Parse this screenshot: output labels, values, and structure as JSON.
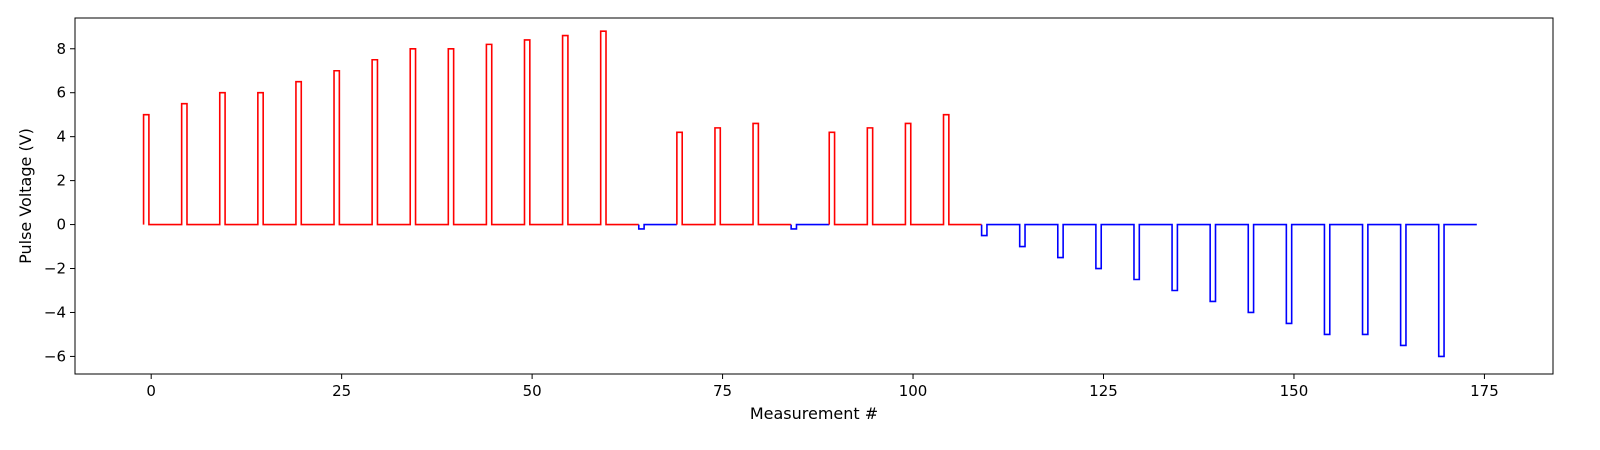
{
  "chart_data": {
    "type": "line",
    "title": "",
    "xlabel": "Measurement #",
    "ylabel": "Pulse Voltage (V)",
    "xlim": [
      -10,
      184
    ],
    "ylim": [
      -6.8,
      9.4
    ],
    "x_ticks": [
      0,
      25,
      50,
      75,
      100,
      125,
      150,
      175
    ],
    "y_ticks": [
      -6,
      -4,
      -2,
      0,
      2,
      4,
      6,
      8
    ],
    "grid": false,
    "legend": "none",
    "pulse_width": 0.7,
    "series": [
      {
        "color": "#ff0000",
        "x_range": [
          -1,
          64
        ],
        "pulses": [
          {
            "x": -1,
            "v": 5.0
          },
          {
            "x": 4,
            "v": 5.5
          },
          {
            "x": 9,
            "v": 6.0
          },
          {
            "x": 14,
            "v": 6.0
          },
          {
            "x": 19,
            "v": 6.5
          },
          {
            "x": 24,
            "v": 7.0
          },
          {
            "x": 29,
            "v": 7.5
          },
          {
            "x": 34,
            "v": 8.0
          },
          {
            "x": 39,
            "v": 8.0
          },
          {
            "x": 44,
            "v": 8.2
          },
          {
            "x": 49,
            "v": 8.4
          },
          {
            "x": 54,
            "v": 8.6
          },
          {
            "x": 59,
            "v": 8.8
          }
        ]
      },
      {
        "color": "#0000ff",
        "x_range": [
          64,
          69
        ],
        "pulses": [
          {
            "x": 64,
            "v": -0.2
          }
        ]
      },
      {
        "color": "#ff0000",
        "x_range": [
          69,
          84
        ],
        "pulses": [
          {
            "x": 69,
            "v": 4.2
          },
          {
            "x": 74,
            "v": 4.4
          },
          {
            "x": 79,
            "v": 4.6
          }
        ]
      },
      {
        "color": "#0000ff",
        "x_range": [
          84,
          89
        ],
        "pulses": [
          {
            "x": 84,
            "v": -0.2
          }
        ]
      },
      {
        "color": "#ff0000",
        "x_range": [
          89,
          109
        ],
        "pulses": [
          {
            "x": 89,
            "v": 4.2
          },
          {
            "x": 94,
            "v": 4.4
          },
          {
            "x": 99,
            "v": 4.6
          },
          {
            "x": 104,
            "v": 5.0
          }
        ]
      },
      {
        "color": "#0000ff",
        "x_range": [
          109,
          174
        ],
        "pulses": [
          {
            "x": 109,
            "v": -0.5
          },
          {
            "x": 114,
            "v": -1.0
          },
          {
            "x": 119,
            "v": -1.5
          },
          {
            "x": 124,
            "v": -2.0
          },
          {
            "x": 129,
            "v": -2.5
          },
          {
            "x": 134,
            "v": -3.0
          },
          {
            "x": 139,
            "v": -3.5
          },
          {
            "x": 144,
            "v": -4.0
          },
          {
            "x": 149,
            "v": -4.5
          },
          {
            "x": 154,
            "v": -5.0
          },
          {
            "x": 159,
            "v": -5.0
          },
          {
            "x": 164,
            "v": -5.5
          },
          {
            "x": 169,
            "v": -6.0
          }
        ]
      }
    ]
  }
}
